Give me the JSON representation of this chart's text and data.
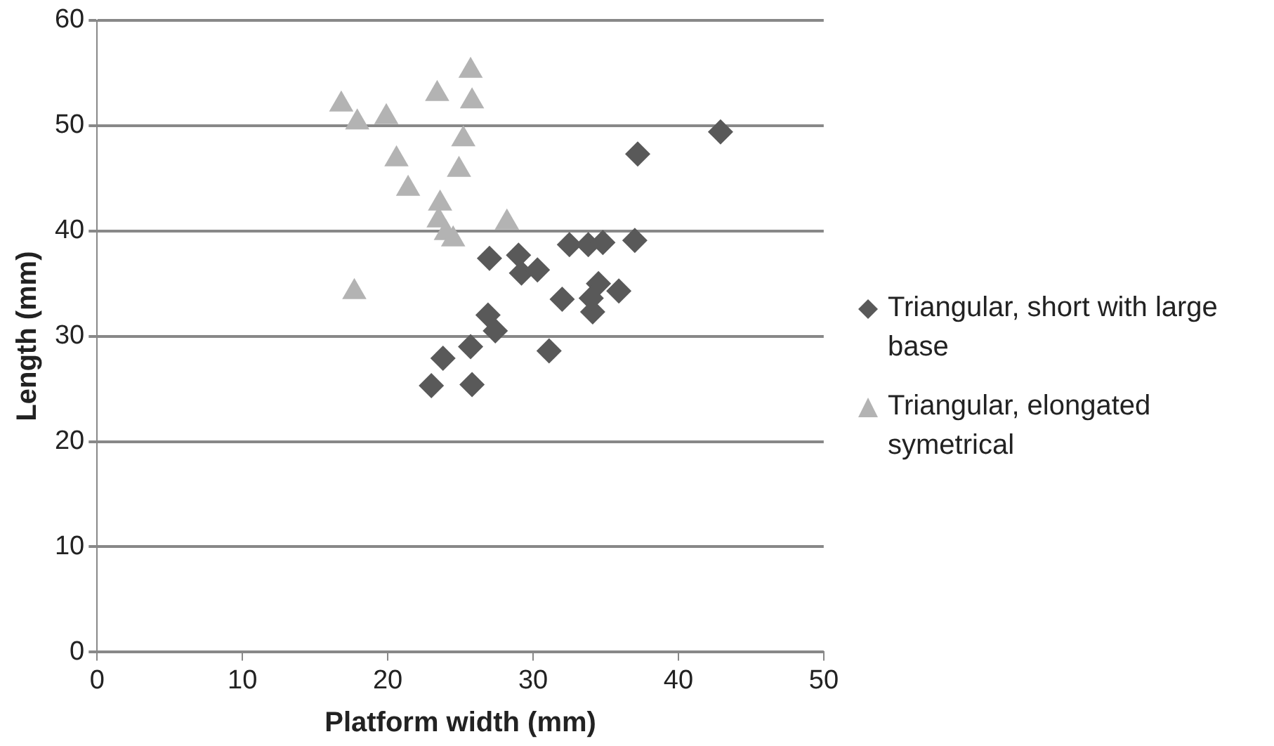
{
  "chart_data": {
    "type": "scatter",
    "xlabel": "Platform width (mm)",
    "ylabel": "Length (mm)",
    "xlim": [
      0,
      50
    ],
    "xticks": [
      0,
      10,
      20,
      30,
      40,
      50
    ],
    "ylim": [
      0,
      60
    ],
    "yticks": [
      0,
      10,
      20,
      30,
      40,
      50,
      60
    ],
    "grid": "y",
    "legend": "right",
    "series": [
      {
        "name": "Triangular, short with large base",
        "color": "#595959",
        "marker": "diamond",
        "x": [
          23,
          23.8,
          25.7,
          25.8,
          26.9,
          27.4,
          27,
          29,
          29.2,
          30.3,
          31.1,
          32,
          32.5,
          33.8,
          34.1,
          34.5,
          34.8,
          34,
          35.9,
          37,
          37.2,
          42.9
        ],
        "values": [
          25.3,
          27.9,
          29,
          25.4,
          32,
          30.5,
          37.4,
          37.7,
          36,
          36.3,
          28.6,
          33.5,
          38.7,
          38.7,
          32.3,
          35,
          38.9,
          33.6,
          34.3,
          39.1,
          47.3,
          49.4
        ]
      },
      {
        "name": "Triangular, elongated symetrical",
        "color": "#b3b3b3",
        "marker": "triangle",
        "x": [
          16.8,
          17.9,
          17.7,
          19.9,
          20.6,
          21.4,
          23.4,
          23.6,
          23.5,
          24,
          24.5,
          24.9,
          25.2,
          25.7,
          25.8,
          28.2
        ],
        "values": [
          52,
          50.3,
          34.2,
          50.8,
          46.8,
          44,
          53,
          42.6,
          41,
          39.8,
          39.2,
          45.8,
          48.7,
          55.2,
          52.3,
          40.8
        ]
      }
    ]
  }
}
